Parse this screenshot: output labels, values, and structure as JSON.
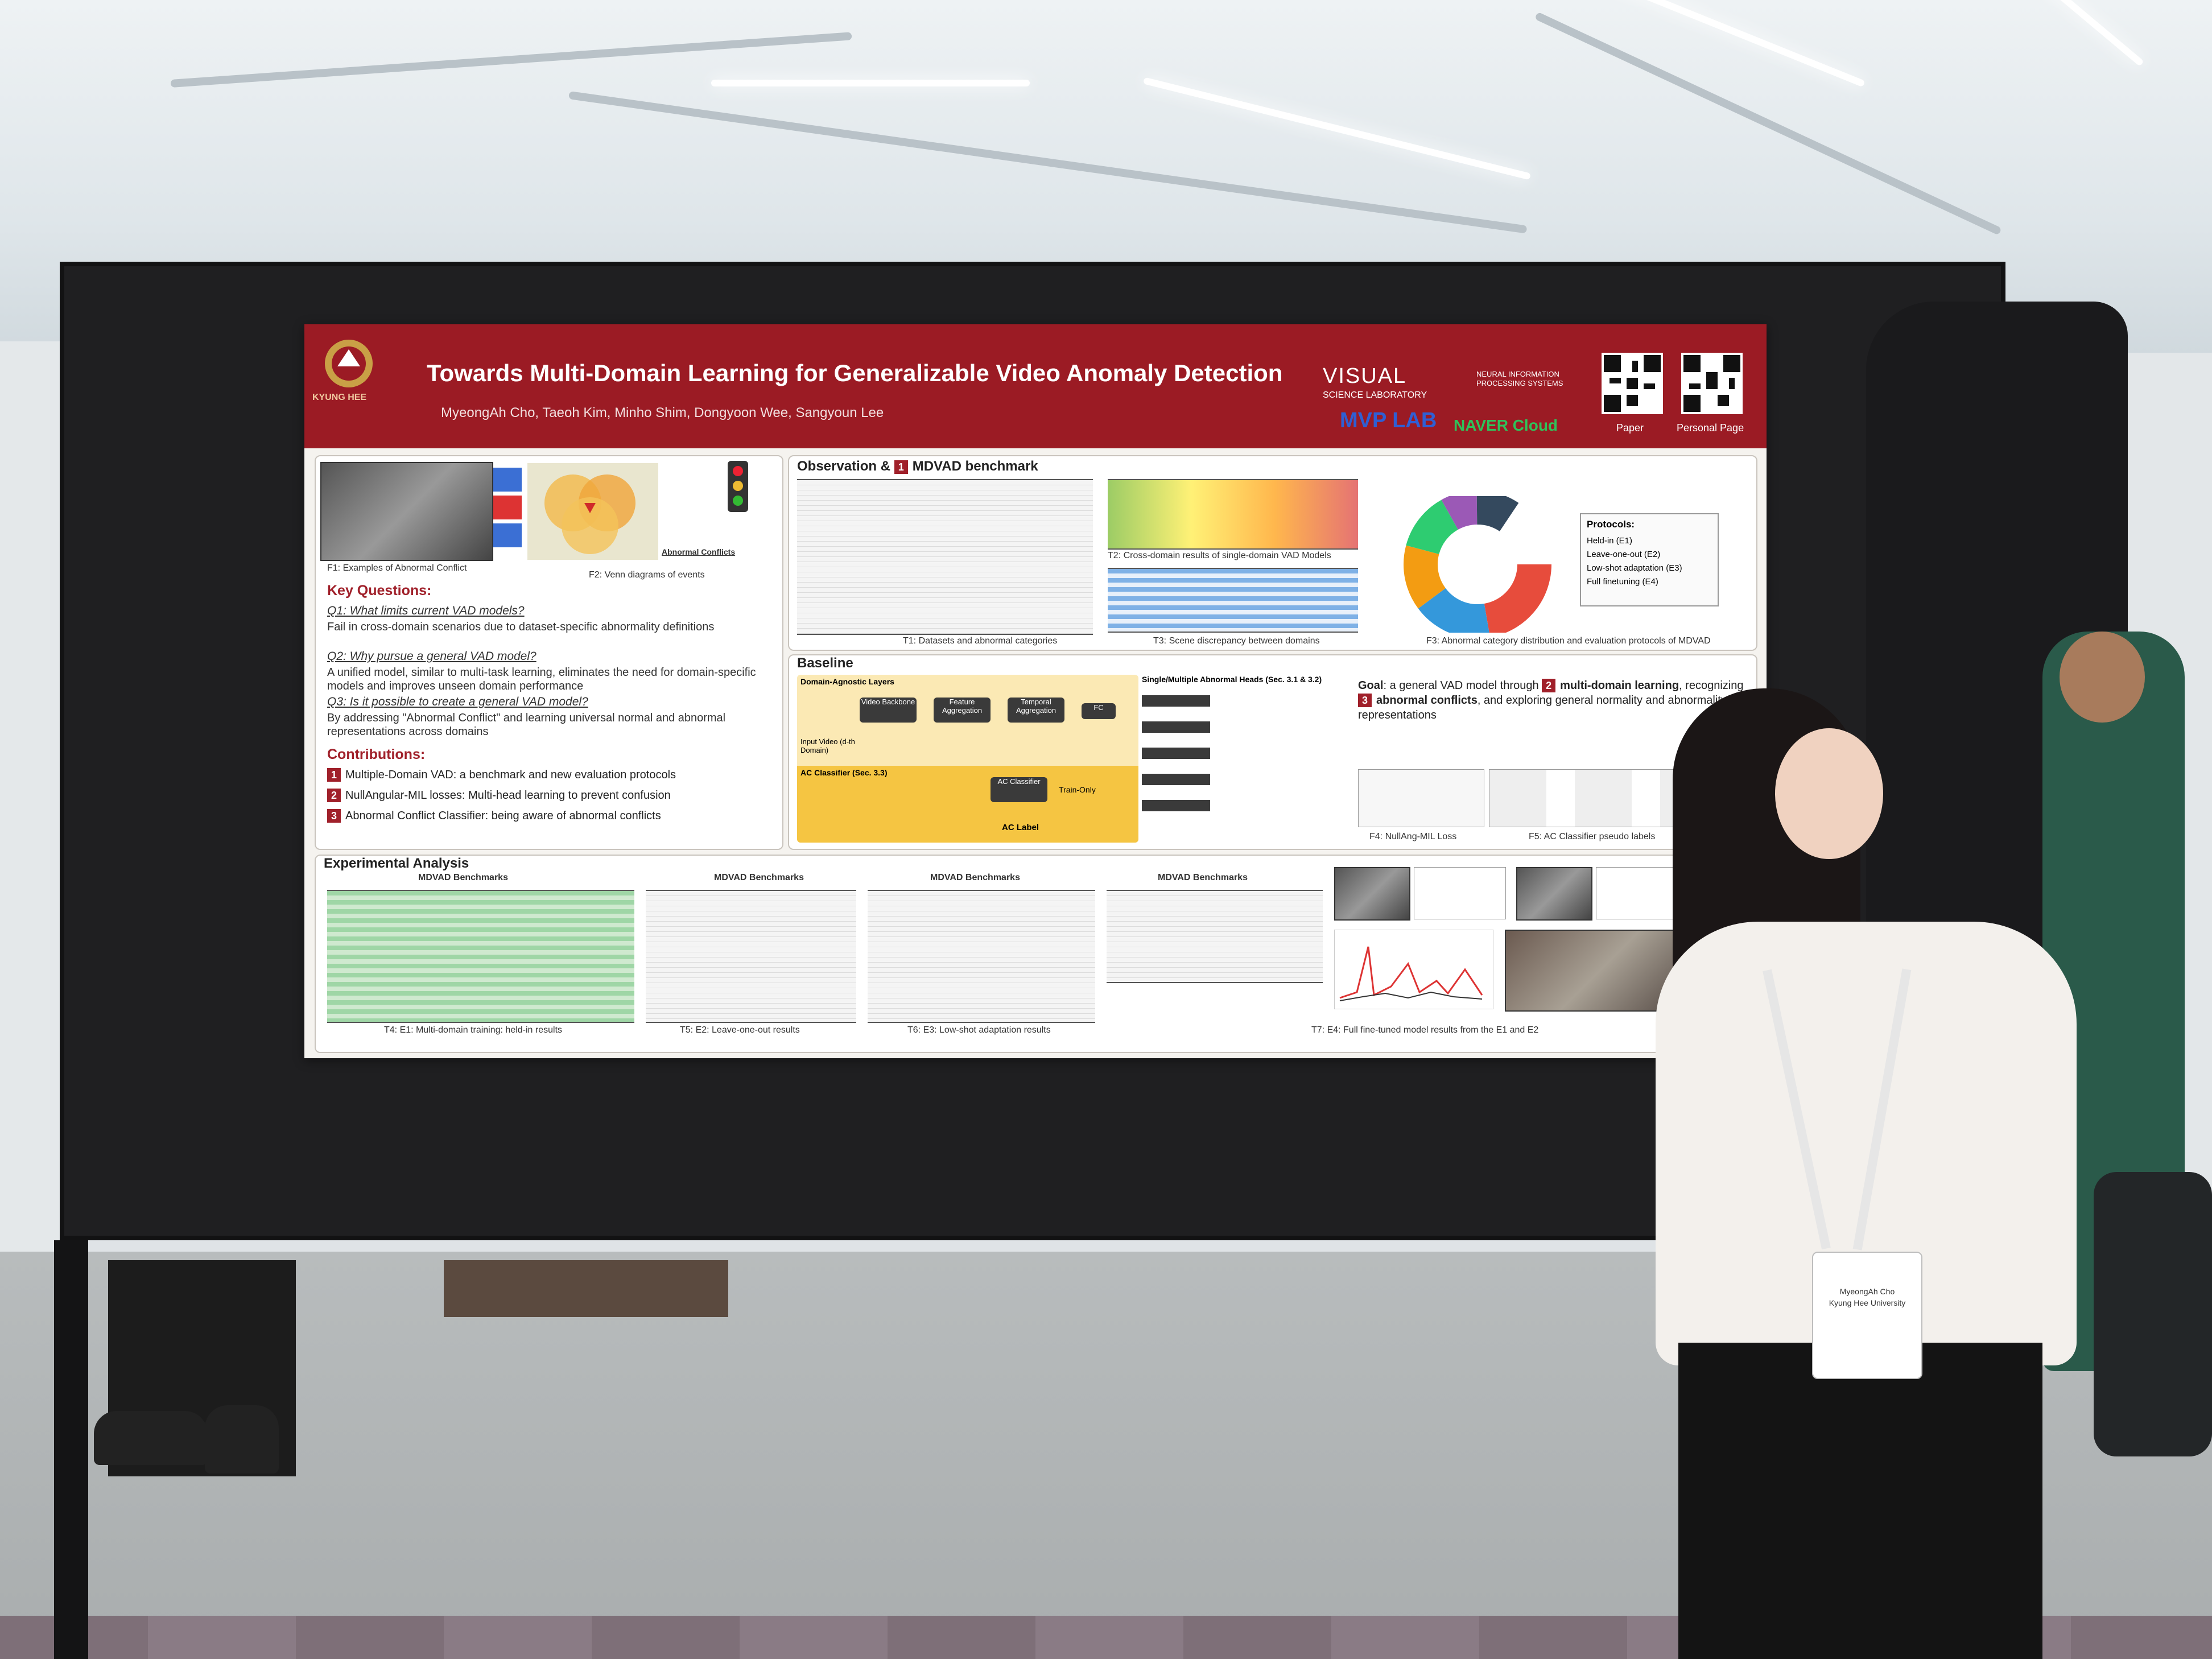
{
  "poster": {
    "title": "Towards Multi-Domain Learning for Generalizable Video Anomaly Detection",
    "authors": "MyeongAh Cho, Taeoh Kim, Minho Shim, Dongyoon Wee, Sangyoun Lee",
    "university_logo_text": "KYUNG HEE",
    "labs": {
      "visual": "VISUAL",
      "visual_sub": "SCIENCE LABORATORY",
      "mvp": "MVP LAB",
      "neurips": "NEURAL INFORMATION PROCESSING SYSTEMS",
      "naver": "NAVER Cloud"
    },
    "qr_codes": [
      {
        "caption": "Paper"
      },
      {
        "caption": "Personal Page"
      }
    ],
    "left_column": {
      "fig1_caption": "F1: Examples of Abnormal Conflict",
      "fig2_caption": "F2: Venn diagrams of events",
      "venn_label": "Abnormal Conflicts",
      "key_questions_heading": "Key Questions:",
      "questions": [
        {
          "q": "Q1: What limits current VAD models?",
          "a": "Fail in cross-domain scenarios due to dataset-specific abnormality definitions"
        },
        {
          "q": "Q2: Why pursue a general VAD model?",
          "a": "A unified model, similar to multi-task learning, eliminates the need for domain-specific models and improves unseen domain performance"
        },
        {
          "q": "Q3: Is it possible to create a general VAD model?",
          "a": "By addressing \"Abnormal Conflict\" and learning universal normal and abnormal representations across domains"
        }
      ],
      "contributions_heading": "Contributions:",
      "contributions": [
        {
          "num": "1",
          "text": "Multiple-Domain VAD: a benchmark and new evaluation protocols"
        },
        {
          "num": "2",
          "text": "NullAngular-MIL losses: Multi-head learning to prevent confusion"
        },
        {
          "num": "3",
          "text": "Abnormal Conflict Classifier: being aware of abnormal conflicts"
        }
      ]
    },
    "observation": {
      "heading": "Observation &",
      "heading_num": "1",
      "heading_tail": "MDVAD benchmark",
      "t1_caption": "T1: Datasets and abnormal categories",
      "t2_caption": "T2: Cross-domain results of single-domain VAD Models",
      "t3_caption": "T3: Scene discrepancy between domains",
      "f3_caption": "F3: Abnormal category distribution and evaluation protocols of MDVAD",
      "protocols_heading": "Protocols:",
      "protocols": [
        "Held-in (E1)",
        "Leave-one-out (E2)",
        "Low-shot adaptation (E3)",
        "Full finetuning (E4)"
      ]
    },
    "baseline": {
      "heading": "Baseline",
      "domain_agnostic": "Domain-Agnostic Layers",
      "heads_label": "Single/Multiple Abnormal Heads (Sec. 3.1 & 3.2)",
      "ac_classifier": "AC Classifier (Sec. 3.3)",
      "blocks": [
        "Video Backbone",
        "Feature Aggregation",
        "Temporal Aggregation",
        "FC",
        "AC Classifier"
      ],
      "input_video": "Input Video (d-th Domain)",
      "train_only": "Train-Only",
      "ac_label": "AC Label",
      "goal_lead": "Goal",
      "goal_text": ": a general VAD model through",
      "goal_num2": "2",
      "goal_mdl": "multi-domain learning",
      "goal_recognizing": "recognizing",
      "goal_num3": "3",
      "goal_ac": "abnormal conflicts",
      "goal_tail": ", and exploring general normality and abnormality representations",
      "f4_caption": "F4: NullAng-MIL Loss",
      "f5_caption": "F5: AC Classifier pseudo labels"
    },
    "experimental": {
      "heading": "Experimental Analysis",
      "t4_caption": "T4: E1: Multi-domain training: held-in results",
      "t5_caption": "T5: E2: Leave-one-out results",
      "t6_caption": "T6: E3: Low-shot adaptation results",
      "t7_caption": "T7: E4: Full fine-tuned model results from the E1 and E2",
      "table_title": "MDVAD Benchmarks"
    },
    "colors": {
      "banner": "#9b1b24",
      "accent_red": "#a0202a",
      "board": "#1f1f21"
    }
  },
  "badge": {
    "name": "MyeongAh Cho",
    "university": "Kyung Hee University"
  }
}
